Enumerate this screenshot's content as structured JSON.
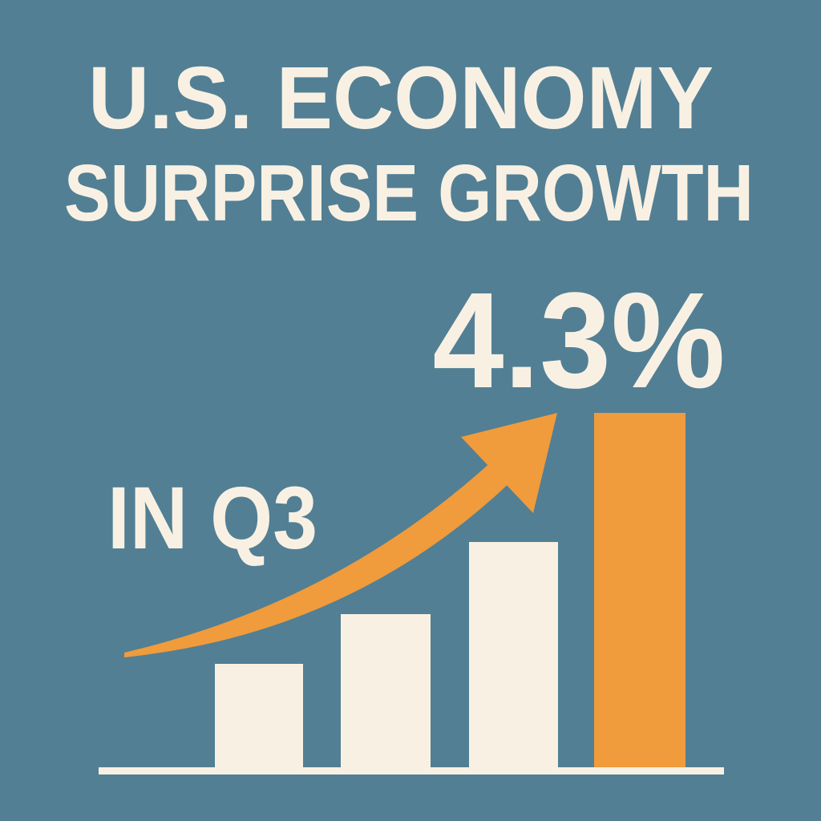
{
  "poster": {
    "title_lines": [
      "U.S. ECONOMY",
      "SURPRISE GROWTH"
    ],
    "headline_figure": "4.3%",
    "period": "IN Q3"
  }
}
